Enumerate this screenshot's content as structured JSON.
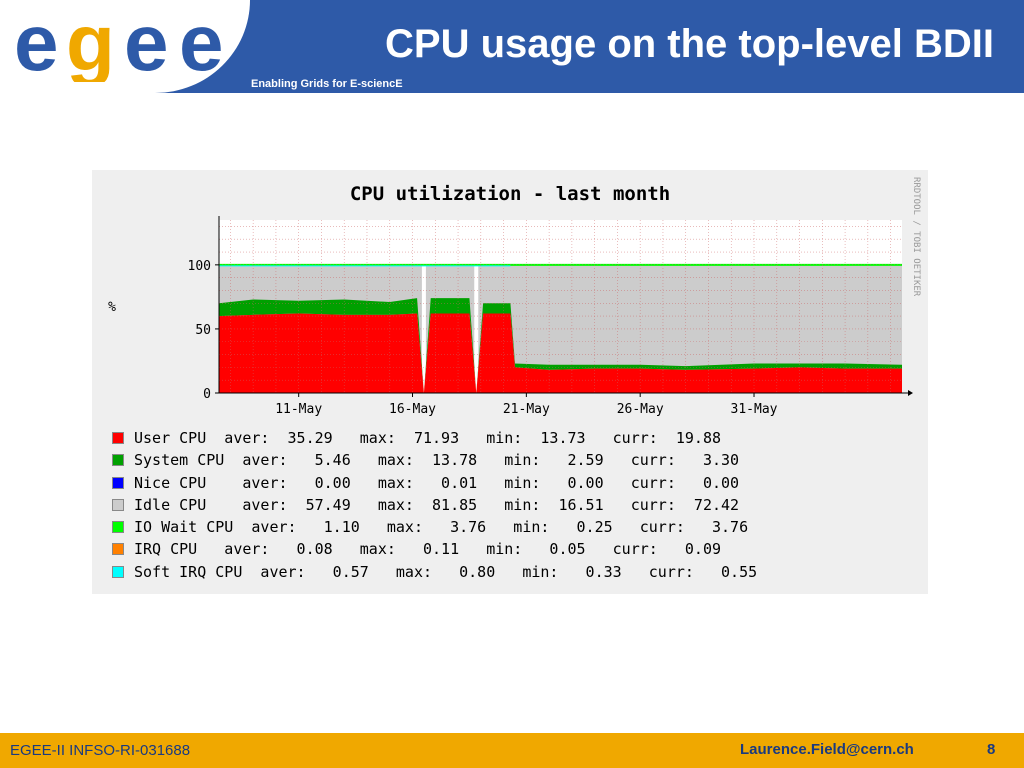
{
  "header": {
    "title": "CPU usage on the top-level BDII",
    "subtitle": "Enabling Grids for E-sciencE",
    "logo_text": "egee"
  },
  "footer": {
    "project": "EGEE-II INFSO-RI-031688",
    "email": "Laurence.Field@cern.ch",
    "page": "8"
  },
  "colors": {
    "header_band": "#2e5aa8",
    "footer_band": "#f0a800",
    "user": "#ff0000",
    "system": "#00a000",
    "nice": "#0000ff",
    "idle": "#cccccc",
    "iowait": "#00ff00",
    "irq": "#ff8000",
    "softirq": "#00ffff"
  },
  "chart_data": {
    "type": "area",
    "title": "CPU utilization - last month",
    "ylabel": "%",
    "side_text": "RRDTOOL / TOBI OETIKER",
    "ylim": [
      0,
      135
    ],
    "yticks": [
      0,
      50,
      100
    ],
    "ytick_labels": [
      "0",
      "50",
      "100"
    ],
    "xlim": [
      7.5,
      37.5
    ],
    "xticks": [
      11,
      16,
      21,
      26,
      31
    ],
    "xtick_labels": [
      "11-May",
      "16-May",
      "21-May",
      "26-May",
      "31-May"
    ],
    "grid": true,
    "series": [
      {
        "key": "user",
        "name": "User CPU",
        "stat": "  aver:  35.29   max:  71.93   min:  13.73   curr:  19.88",
        "points": [
          [
            7.5,
            60
          ],
          [
            9,
            61
          ],
          [
            11,
            62
          ],
          [
            13,
            61
          ],
          [
            15,
            61
          ],
          [
            16.2,
            62
          ],
          [
            16.5,
            0
          ],
          [
            16.8,
            62
          ],
          [
            18.5,
            62
          ],
          [
            18.8,
            0
          ],
          [
            19.1,
            62
          ],
          [
            20.3,
            62
          ],
          [
            20.5,
            20
          ],
          [
            22,
            18
          ],
          [
            24,
            19
          ],
          [
            26,
            19
          ],
          [
            28,
            18
          ],
          [
            31,
            19
          ],
          [
            33,
            20
          ],
          [
            35,
            19
          ],
          [
            37.5,
            19
          ]
        ]
      },
      {
        "key": "system",
        "name": "System CPU",
        "stat": "  aver:   5.46   max:  13.78   min:   2.59   curr:   3.30",
        "points": [
          [
            7.5,
            10
          ],
          [
            9,
            12
          ],
          [
            11,
            10
          ],
          [
            13,
            12
          ],
          [
            15,
            10
          ],
          [
            16.2,
            12
          ],
          [
            16.5,
            0
          ],
          [
            16.8,
            12
          ],
          [
            18.5,
            12
          ],
          [
            18.8,
            0
          ],
          [
            19.1,
            8
          ],
          [
            20.3,
            8
          ],
          [
            20.5,
            3
          ],
          [
            22,
            4
          ],
          [
            24,
            3
          ],
          [
            26,
            3
          ],
          [
            28,
            3
          ],
          [
            31,
            4
          ],
          [
            33,
            3
          ],
          [
            35,
            4
          ],
          [
            37.5,
            3
          ]
        ]
      },
      {
        "key": "nice",
        "name": "Nice CPU",
        "stat": "    aver:   0.00   max:   0.01   min:   0.00   curr:   0.00",
        "points": []
      },
      {
        "key": "idle",
        "name": "Idle CPU",
        "stat": "    aver:  57.49   max:  81.85   min:  16.51   curr:  72.42",
        "points": []
      },
      {
        "key": "iowait",
        "name": "IO Wait CPU",
        "stat": "  aver:   1.10   max:   3.76   min:   0.25   curr:   3.76",
        "points": []
      },
      {
        "key": "irq",
        "name": "IRQ CPU",
        "stat": "   aver:   0.08   max:   0.11   min:   0.05   curr:   0.09",
        "points": []
      },
      {
        "key": "softirq",
        "name": "Soft IRQ CPU",
        "stat": "  aver:   0.57   max:   0.80   min:   0.33   curr:   0.55",
        "points": []
      }
    ]
  }
}
